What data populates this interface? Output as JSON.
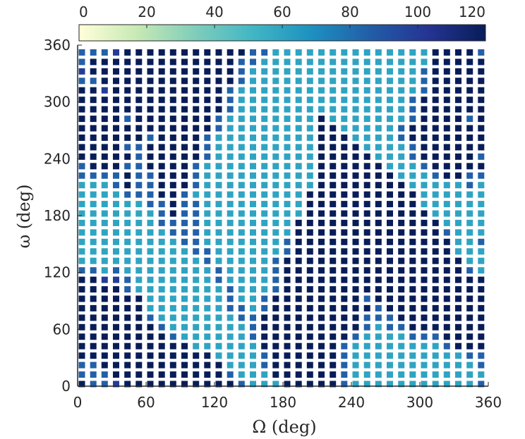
{
  "chart_data": {
    "type": "heatmap",
    "title": "",
    "xlabel": "Ω (deg)",
    "ylabel": "ω (deg)",
    "xlim": [
      0,
      360
    ],
    "ylim": [
      0,
      360
    ],
    "xticks": [
      "0",
      "60",
      "120",
      "180",
      "240",
      "300",
      "360"
    ],
    "yticks": [
      "0",
      "60",
      "120",
      "180",
      "240",
      "300",
      "360"
    ],
    "grid_step_deg": 10,
    "colorbar": {
      "location": "top",
      "range": [
        0,
        120
      ],
      "ticks": [
        "0",
        "20",
        "40",
        "60",
        "80",
        "100",
        "120"
      ],
      "colormap": [
        "#ffffd9",
        "#c7e9b4",
        "#7fcdbb",
        "#41b6c4",
        "#1d91c0",
        "#225ea8",
        "#253494",
        "#081d58"
      ]
    },
    "z_description": "z = 120 black; 100 dark blue; 85 mid blue; 60 teal. rows[0] is omega=350 (top), rows[35] is omega=0 (bottom); columns are Omega=0..350",
    "rows": [
      [
        85,
        85,
        85,
        100,
        120,
        120,
        120,
        120,
        120,
        120,
        120,
        120,
        120,
        120,
        120,
        85,
        85,
        60,
        60,
        60,
        60,
        60,
        60,
        60,
        60,
        60,
        60,
        60,
        60,
        60,
        60,
        120,
        120,
        120,
        120,
        85
      ],
      [
        85,
        120,
        120,
        120,
        120,
        120,
        120,
        120,
        120,
        120,
        120,
        120,
        120,
        120,
        85,
        85,
        60,
        60,
        60,
        60,
        60,
        60,
        60,
        60,
        60,
        60,
        60,
        60,
        60,
        60,
        60,
        120,
        120,
        120,
        120,
        120
      ],
      [
        100,
        120,
        120,
        120,
        120,
        120,
        120,
        120,
        120,
        120,
        120,
        120,
        120,
        120,
        85,
        60,
        60,
        60,
        60,
        60,
        60,
        60,
        60,
        60,
        60,
        60,
        60,
        60,
        60,
        60,
        85,
        120,
        120,
        120,
        120,
        120
      ],
      [
        85,
        85,
        120,
        120,
        120,
        120,
        120,
        120,
        120,
        120,
        120,
        120,
        120,
        120,
        85,
        60,
        60,
        60,
        60,
        60,
        60,
        60,
        60,
        60,
        60,
        60,
        60,
        60,
        60,
        60,
        85,
        120,
        120,
        120,
        120,
        120
      ],
      [
        120,
        120,
        100,
        120,
        120,
        120,
        120,
        120,
        120,
        120,
        120,
        120,
        120,
        85,
        60,
        60,
        60,
        60,
        60,
        60,
        60,
        60,
        60,
        60,
        60,
        60,
        60,
        60,
        60,
        60,
        85,
        120,
        120,
        120,
        120,
        120
      ],
      [
        120,
        120,
        120,
        120,
        120,
        120,
        120,
        120,
        120,
        120,
        120,
        120,
        120,
        85,
        60,
        60,
        60,
        60,
        60,
        60,
        60,
        60,
        60,
        60,
        60,
        60,
        60,
        60,
        60,
        85,
        120,
        120,
        120,
        120,
        120,
        120
      ],
      [
        120,
        120,
        120,
        120,
        120,
        120,
        120,
        120,
        120,
        120,
        120,
        120,
        120,
        85,
        60,
        60,
        60,
        60,
        60,
        60,
        60,
        60,
        60,
        60,
        60,
        60,
        60,
        60,
        60,
        85,
        120,
        120,
        120,
        120,
        120,
        120
      ],
      [
        120,
        120,
        120,
        120,
        85,
        120,
        120,
        120,
        120,
        120,
        120,
        120,
        85,
        60,
        60,
        60,
        60,
        60,
        60,
        60,
        60,
        120,
        60,
        60,
        60,
        60,
        60,
        60,
        60,
        85,
        120,
        120,
        120,
        120,
        85,
        120
      ],
      [
        120,
        120,
        120,
        120,
        120,
        120,
        120,
        120,
        120,
        120,
        120,
        120,
        85,
        60,
        60,
        60,
        60,
        60,
        60,
        60,
        60,
        120,
        120,
        60,
        60,
        60,
        60,
        60,
        85,
        120,
        120,
        120,
        120,
        120,
        120,
        120
      ],
      [
        120,
        120,
        120,
        120,
        120,
        120,
        85,
        120,
        120,
        120,
        120,
        85,
        60,
        60,
        60,
        60,
        60,
        60,
        60,
        60,
        60,
        120,
        120,
        120,
        60,
        60,
        60,
        60,
        85,
        120,
        120,
        120,
        120,
        120,
        120,
        120
      ],
      [
        120,
        120,
        120,
        120,
        85,
        85,
        120,
        120,
        120,
        120,
        120,
        85,
        60,
        60,
        60,
        60,
        60,
        60,
        60,
        60,
        60,
        120,
        120,
        120,
        120,
        60,
        60,
        60,
        60,
        85,
        120,
        120,
        120,
        120,
        120,
        120
      ],
      [
        120,
        120,
        120,
        120,
        120,
        85,
        120,
        120,
        120,
        120,
        120,
        85,
        60,
        60,
        60,
        60,
        60,
        60,
        60,
        60,
        60,
        120,
        120,
        120,
        120,
        120,
        60,
        60,
        60,
        85,
        120,
        120,
        120,
        120,
        120,
        85
      ],
      [
        85,
        120,
        120,
        120,
        85,
        85,
        120,
        120,
        120,
        120,
        85,
        60,
        60,
        60,
        60,
        60,
        60,
        60,
        60,
        60,
        60,
        120,
        120,
        120,
        120,
        120,
        120,
        60,
        60,
        60,
        85,
        120,
        120,
        120,
        120,
        120
      ],
      [
        85,
        85,
        85,
        85,
        120,
        85,
        85,
        120,
        120,
        120,
        85,
        60,
        60,
        60,
        60,
        60,
        60,
        60,
        60,
        60,
        60,
        120,
        120,
        120,
        120,
        120,
        120,
        120,
        60,
        60,
        60,
        85,
        120,
        120,
        85,
        85
      ],
      [
        60,
        60,
        60,
        85,
        120,
        85,
        85,
        120,
        120,
        120,
        85,
        60,
        60,
        60,
        60,
        60,
        60,
        60,
        60,
        60,
        60,
        120,
        120,
        120,
        120,
        120,
        120,
        120,
        120,
        60,
        60,
        60,
        60,
        60,
        85,
        60
      ],
      [
        60,
        60,
        60,
        60,
        85,
        85,
        85,
        120,
        120,
        85,
        60,
        60,
        60,
        60,
        60,
        60,
        60,
        60,
        60,
        60,
        120,
        120,
        120,
        120,
        120,
        120,
        120,
        120,
        120,
        120,
        60,
        60,
        60,
        60,
        60,
        60
      ],
      [
        60,
        60,
        60,
        60,
        60,
        60,
        85,
        85,
        120,
        85,
        85,
        60,
        60,
        60,
        60,
        60,
        60,
        60,
        60,
        60,
        120,
        120,
        120,
        120,
        120,
        120,
        120,
        120,
        120,
        120,
        60,
        60,
        60,
        60,
        60,
        60
      ],
      [
        60,
        60,
        60,
        60,
        60,
        60,
        60,
        85,
        120,
        85,
        85,
        60,
        60,
        60,
        60,
        60,
        60,
        60,
        60,
        60,
        120,
        120,
        120,
        120,
        120,
        120,
        120,
        120,
        120,
        120,
        120,
        60,
        60,
        60,
        60,
        60
      ],
      [
        60,
        60,
        60,
        60,
        60,
        60,
        60,
        85,
        85,
        85,
        85,
        60,
        60,
        60,
        60,
        60,
        60,
        60,
        60,
        120,
        120,
        120,
        120,
        120,
        120,
        120,
        120,
        120,
        120,
        120,
        120,
        120,
        60,
        60,
        60,
        60
      ],
      [
        60,
        60,
        60,
        60,
        60,
        60,
        60,
        60,
        85,
        85,
        85,
        60,
        60,
        60,
        60,
        60,
        60,
        60,
        60,
        120,
        120,
        120,
        120,
        120,
        120,
        120,
        120,
        120,
        120,
        120,
        120,
        120,
        85,
        60,
        60,
        60
      ],
      [
        60,
        60,
        60,
        60,
        60,
        60,
        60,
        60,
        60,
        85,
        85,
        60,
        60,
        60,
        60,
        60,
        60,
        60,
        85,
        120,
        120,
        120,
        120,
        120,
        120,
        120,
        120,
        120,
        120,
        120,
        120,
        120,
        120,
        60,
        60,
        85
      ],
      [
        60,
        60,
        60,
        60,
        60,
        60,
        60,
        60,
        60,
        60,
        85,
        85,
        60,
        60,
        60,
        60,
        60,
        60,
        85,
        120,
        120,
        120,
        120,
        120,
        120,
        120,
        120,
        120,
        120,
        120,
        120,
        120,
        120,
        60,
        60,
        60
      ],
      [
        60,
        60,
        60,
        60,
        60,
        60,
        60,
        60,
        60,
        60,
        60,
        85,
        60,
        60,
        60,
        60,
        60,
        85,
        120,
        120,
        120,
        120,
        120,
        120,
        120,
        120,
        120,
        120,
        120,
        120,
        120,
        120,
        120,
        120,
        60,
        60
      ],
      [
        85,
        85,
        60,
        85,
        60,
        60,
        60,
        60,
        60,
        60,
        60,
        60,
        85,
        60,
        60,
        60,
        60,
        85,
        120,
        120,
        120,
        120,
        120,
        120,
        120,
        120,
        120,
        120,
        120,
        120,
        120,
        120,
        120,
        120,
        85,
        60
      ],
      [
        120,
        120,
        100,
        100,
        85,
        60,
        60,
        60,
        60,
        60,
        60,
        60,
        85,
        60,
        60,
        60,
        60,
        85,
        120,
        120,
        120,
        120,
        120,
        120,
        120,
        120,
        120,
        120,
        120,
        120,
        120,
        120,
        120,
        120,
        120,
        120
      ],
      [
        120,
        120,
        120,
        120,
        85,
        60,
        60,
        60,
        60,
        60,
        60,
        60,
        60,
        85,
        60,
        60,
        60,
        85,
        120,
        120,
        120,
        120,
        120,
        120,
        120,
        120,
        120,
        120,
        120,
        120,
        120,
        120,
        120,
        120,
        120,
        120
      ],
      [
        120,
        120,
        120,
        120,
        120,
        120,
        60,
        60,
        60,
        60,
        60,
        60,
        60,
        85,
        60,
        60,
        85,
        120,
        120,
        120,
        120,
        120,
        120,
        120,
        120,
        85,
        120,
        120,
        120,
        120,
        120,
        120,
        120,
        120,
        120,
        120
      ],
      [
        120,
        120,
        120,
        120,
        120,
        120,
        60,
        60,
        60,
        60,
        60,
        60,
        60,
        85,
        85,
        60,
        85,
        120,
        120,
        120,
        120,
        120,
        120,
        120,
        120,
        120,
        85,
        120,
        120,
        120,
        120,
        120,
        120,
        120,
        120,
        120
      ],
      [
        120,
        120,
        120,
        120,
        120,
        120,
        85,
        60,
        60,
        60,
        60,
        60,
        60,
        60,
        85,
        85,
        120,
        120,
        120,
        120,
        120,
        120,
        120,
        120,
        120,
        85,
        85,
        85,
        120,
        120,
        120,
        120,
        120,
        120,
        120,
        120
      ],
      [
        120,
        120,
        120,
        120,
        120,
        120,
        120,
        85,
        60,
        60,
        60,
        60,
        60,
        60,
        60,
        85,
        120,
        120,
        120,
        120,
        120,
        120,
        120,
        120,
        120,
        85,
        60,
        85,
        85,
        120,
        120,
        120,
        120,
        120,
        120,
        120
      ],
      [
        120,
        120,
        120,
        120,
        120,
        120,
        120,
        120,
        85,
        60,
        60,
        60,
        60,
        60,
        60,
        85,
        120,
        120,
        120,
        120,
        120,
        120,
        120,
        120,
        85,
        60,
        60,
        60,
        60,
        85,
        85,
        85,
        120,
        120,
        120,
        120
      ],
      [
        120,
        120,
        120,
        120,
        120,
        120,
        120,
        120,
        120,
        120,
        60,
        60,
        60,
        60,
        60,
        60,
        120,
        120,
        120,
        120,
        120,
        120,
        120,
        85,
        60,
        60,
        60,
        60,
        60,
        60,
        60,
        60,
        85,
        120,
        120,
        120
      ],
      [
        120,
        120,
        120,
        120,
        120,
        120,
        120,
        120,
        120,
        120,
        120,
        120,
        60,
        60,
        60,
        60,
        85,
        120,
        120,
        120,
        120,
        120,
        120,
        85,
        60,
        60,
        60,
        60,
        60,
        60,
        60,
        60,
        60,
        60,
        85,
        85
      ],
      [
        85,
        85,
        120,
        120,
        120,
        120,
        120,
        120,
        120,
        120,
        120,
        120,
        120,
        60,
        60,
        60,
        85,
        120,
        120,
        120,
        120,
        120,
        120,
        85,
        60,
        60,
        60,
        60,
        60,
        60,
        60,
        60,
        60,
        60,
        60,
        85
      ],
      [
        85,
        85,
        85,
        120,
        120,
        120,
        120,
        120,
        120,
        120,
        120,
        120,
        120,
        85,
        60,
        60,
        60,
        120,
        120,
        120,
        120,
        120,
        120,
        85,
        60,
        60,
        60,
        60,
        60,
        60,
        60,
        60,
        60,
        60,
        60,
        60
      ],
      [
        120,
        85,
        85,
        100,
        120,
        120,
        120,
        120,
        120,
        120,
        120,
        120,
        120,
        120,
        85,
        60,
        60,
        60,
        120,
        120,
        120,
        120,
        120,
        85,
        60,
        60,
        60,
        60,
        60,
        60,
        60,
        60,
        60,
        60,
        60,
        85
      ]
    ]
  }
}
